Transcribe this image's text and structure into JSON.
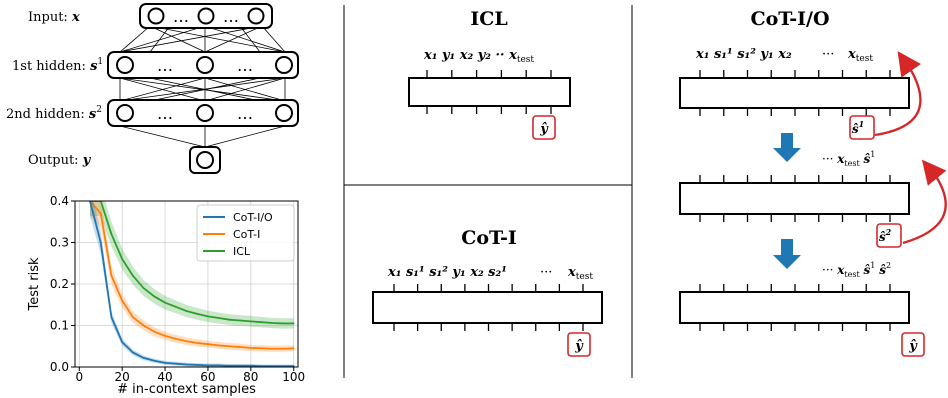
{
  "network": {
    "input_label": "Input: ",
    "input_var": "x",
    "hidden1_label": "1st hidden: ",
    "hidden1_var": "s",
    "hidden1_sup": "1",
    "hidden2_label": "2nd hidden: ",
    "hidden2_var": "s",
    "hidden2_sup": "2",
    "output_label": "Output: ",
    "output_var": "y",
    "ellipsis": "…"
  },
  "panels": {
    "icl_title": "ICL",
    "icl_tokens": "x₁ y₁ x₂ y₂ ·· x",
    "icl_tokens_sub": "test",
    "icl_output": "ŷ",
    "coti_title": "CoT-I",
    "coti_tokens": "x₁ s₁¹ s₁² y₁ x₂ s₂¹",
    "coti_dots": "···",
    "coti_tail": "x",
    "coti_tail_sub": "test",
    "coti_output": "ŷ",
    "cotio_title": "CoT-I/O",
    "cotio_tokens": "x₁ s₁¹ s₁² y₁ x₂",
    "cotio_dots": "···",
    "cotio_tail": "x",
    "cotio_tail_sub": "test",
    "cotio_out1": "ŝ",
    "cotio_out1_sup": "1",
    "cotio_mid2_prefix": "··· ",
    "cotio_mid2_x": "x",
    "cotio_mid2_sub": "test",
    "cotio_mid2_s": "ŝ",
    "cotio_mid2_sup": "1",
    "cotio_out2": "ŝ",
    "cotio_out2_sup": "2",
    "cotio_mid3_prefix": "··· ",
    "cotio_mid3_x": "x",
    "cotio_mid3_sub": "test",
    "cotio_mid3_s1": "ŝ",
    "cotio_mid3_sup1": "1",
    "cotio_mid3_s2": "ŝ",
    "cotio_mid3_sup2": "2",
    "cotio_out3": "ŷ"
  },
  "chart_data": {
    "type": "line",
    "title": "",
    "xlabel": "# in-context samples",
    "ylabel": "Test risk",
    "xlim": [
      -2,
      102
    ],
    "ylim": [
      0.0,
      0.4
    ],
    "xticks": [
      0,
      20,
      40,
      60,
      80,
      100
    ],
    "yticks": [
      0.0,
      0.1,
      0.2,
      0.3,
      0.4
    ],
    "xtick_labels": [
      "0",
      "20",
      "40",
      "60",
      "80",
      "100"
    ],
    "ytick_labels": [
      "0.0",
      "0.1",
      "0.2",
      "0.3",
      "0.4"
    ],
    "grid": true,
    "legend": "top-right",
    "x": [
      5,
      10,
      15,
      20,
      25,
      30,
      35,
      40,
      45,
      50,
      55,
      60,
      65,
      70,
      75,
      80,
      85,
      90,
      95,
      100
    ],
    "series": [
      {
        "name": "CoT-I/O",
        "color": "#1f77b4",
        "values": [
          0.4,
          0.3,
          0.12,
          0.06,
          0.035,
          0.022,
          0.015,
          0.01,
          0.008,
          0.006,
          0.005,
          0.004,
          0.004,
          0.003,
          0.003,
          0.003,
          0.002,
          0.002,
          0.002,
          0.002
        ]
      },
      {
        "name": "CoT-I",
        "color": "#ff7f0e",
        "values": [
          0.4,
          0.37,
          0.22,
          0.16,
          0.12,
          0.1,
          0.085,
          0.075,
          0.068,
          0.062,
          0.058,
          0.055,
          0.052,
          0.05,
          0.048,
          0.046,
          0.045,
          0.044,
          0.044,
          0.045
        ]
      },
      {
        "name": "ICL",
        "color": "#2ca02c",
        "values": [
          0.4,
          0.4,
          0.32,
          0.26,
          0.22,
          0.19,
          0.17,
          0.155,
          0.145,
          0.135,
          0.128,
          0.122,
          0.118,
          0.114,
          0.112,
          0.11,
          0.108,
          0.106,
          0.105,
          0.105
        ]
      }
    ]
  }
}
